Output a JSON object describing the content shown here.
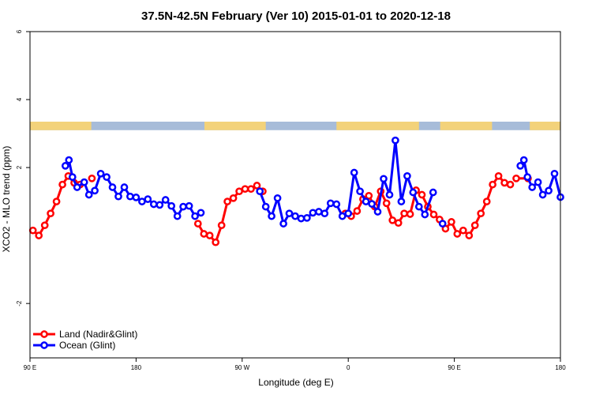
{
  "chart_data": {
    "type": "line",
    "title": "37.5N-42.5N February (Ver 10)   2015-01-01 to 2020-12-18",
    "xlabel": "Longitude (deg E)",
    "ylabel": "XCO2 - MLO trend (ppm)",
    "x_ticks": [
      {
        "value": 90,
        "label": "90 E"
      },
      {
        "value": 180,
        "label": "180"
      },
      {
        "value": 270,
        "label": "90 W"
      },
      {
        "value": 360,
        "label": "0"
      },
      {
        "value": 450,
        "label": "90 E"
      },
      {
        "value": 540,
        "label": "180"
      }
    ],
    "y_ticks": [
      {
        "value": -2,
        "label": "-2"
      },
      {
        "value": 2,
        "label": "2"
      },
      {
        "value": 4,
        "label": "4"
      },
      {
        "value": 6,
        "label": "6"
      }
    ],
    "xlim": [
      90,
      540
    ],
    "ylim": [
      -3.6,
      6
    ],
    "grid": false,
    "legend_position": "bottom-left",
    "land_mask": {
      "land_color": "#f3d27a",
      "ocean_color": "#a7bcd9",
      "y_range": [
        3.1,
        3.35
      ],
      "land_lon": [
        [
          90,
          142
        ],
        [
          238,
          290
        ],
        [
          350,
          420
        ],
        [
          438,
          482
        ],
        [
          514,
          540
        ]
      ]
    },
    "series": [
      {
        "name": "Land (Nadir&Glint)",
        "color": "#ff0000",
        "x": [
          92.5,
          97.5,
          102.5,
          107.5,
          112.5,
          117.5,
          122.5,
          127.5,
          132.5,
          142.5,
          232.5,
          237.5,
          242.5,
          247.5,
          252.5,
          257.5,
          262.5,
          267.5,
          272.5,
          277.5,
          282.5,
          287.5,
          357.5,
          362.5,
          367.5,
          372.5,
          377.5,
          382.5,
          387.5,
          392.5,
          397.5,
          402.5,
          407.5,
          412.5,
          417.5,
          422.5,
          427.5,
          432.5,
          437.5,
          442.5,
          447.5,
          452.5,
          457.5,
          462.5,
          467.5,
          472.5,
          477.5,
          482.5,
          487.5,
          492.5,
          497.5,
          502.5,
          512.5
        ],
        "values": [
          0.15,
          0.0,
          0.3,
          0.65,
          1.0,
          1.5,
          1.75,
          1.55,
          1.5,
          1.68,
          0.35,
          0.05,
          0.0,
          -0.2,
          0.3,
          1.0,
          1.1,
          1.3,
          1.37,
          1.37,
          1.47,
          1.3,
          0.65,
          0.57,
          0.72,
          1.07,
          1.17,
          0.85,
          1.3,
          0.95,
          0.45,
          0.37,
          0.65,
          0.63,
          1.33,
          1.2,
          0.85,
          0.62,
          0.47,
          0.2,
          0.4,
          0.05,
          0.15,
          0.0,
          0.3,
          0.65,
          1.0,
          1.5,
          1.75,
          1.55,
          1.5,
          1.68,
          1.68
        ],
        "breaks_after": [
          8,
          9,
          21,
          50
        ]
      },
      {
        "name": "Ocean (Glint)",
        "color": "#0000ff",
        "x": [
          120,
          123,
          126,
          130,
          136,
          140,
          145,
          150,
          155,
          160,
          165,
          170,
          175,
          180,
          185,
          190,
          195,
          200,
          205,
          210,
          215,
          220,
          225,
          230,
          235,
          285,
          290,
          295,
          300,
          305,
          310,
          315,
          320,
          325,
          330,
          335,
          340,
          345,
          350,
          355,
          360,
          365,
          370,
          375,
          380,
          385,
          390,
          395,
          400,
          405,
          410,
          415,
          420,
          425,
          432,
          440,
          506,
          509,
          512,
          516,
          521,
          525,
          530,
          535,
          540
        ],
        "values": [
          2.05,
          2.22,
          1.72,
          1.42,
          1.57,
          1.2,
          1.32,
          1.82,
          1.72,
          1.42,
          1.15,
          1.42,
          1.15,
          1.12,
          1.0,
          1.07,
          0.92,
          0.9,
          1.05,
          0.87,
          0.57,
          0.85,
          0.87,
          0.57,
          0.67,
          1.3,
          0.85,
          0.57,
          1.1,
          0.35,
          0.65,
          0.57,
          0.5,
          0.52,
          0.67,
          0.7,
          0.65,
          0.95,
          0.92,
          0.57,
          0.65,
          1.85,
          1.3,
          1.0,
          0.93,
          0.7,
          1.67,
          1.2,
          2.8,
          1.0,
          1.75,
          1.27,
          0.85,
          0.62,
          1.27,
          0.35,
          2.05,
          2.22,
          1.72,
          1.42,
          1.57,
          1.2,
          1.32,
          1.82,
          1.13
        ],
        "breaks_after": [
          24,
          54,
          55
        ]
      }
    ]
  }
}
